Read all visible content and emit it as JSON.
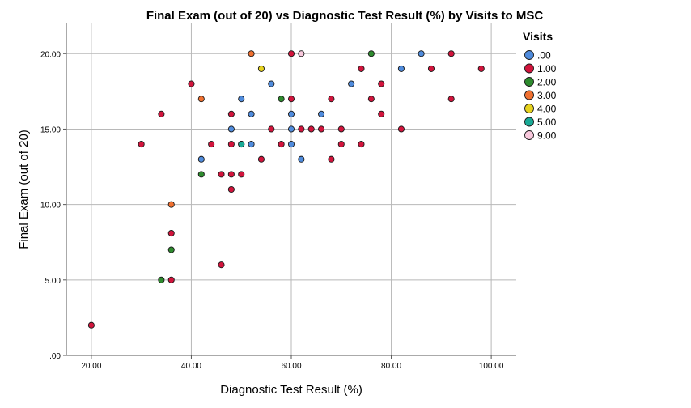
{
  "chart_data": {
    "type": "scatter",
    "title": "Final Exam (out of 20) vs Diagnostic Test Result (%) by Visits to MSC",
    "xlabel": "Diagnostic Test Result (%)",
    "ylabel": "Final Exam (out of 20)",
    "xlim": [
      15,
      105
    ],
    "ylim": [
      0,
      22
    ],
    "xticks": [
      20,
      40,
      60,
      80,
      100
    ],
    "xtick_labels": [
      "20.00",
      "40.00",
      "60.00",
      "80.00",
      "100.00"
    ],
    "yticks": [
      0,
      5,
      10,
      15,
      20
    ],
    "ytick_labels": [
      ".00",
      "5.00",
      "10.00",
      "15.00",
      "20.00"
    ],
    "grid": true,
    "legend_title": "Visits",
    "legend_position": "right",
    "series": [
      {
        "name": ".00",
        "color": "#4f8bdc",
        "points": [
          [
            42,
            13
          ],
          [
            48,
            15
          ],
          [
            50,
            17
          ],
          [
            52,
            16
          ],
          [
            52,
            14
          ],
          [
            56,
            18
          ],
          [
            60,
            16
          ],
          [
            60,
            15
          ],
          [
            60,
            14
          ],
          [
            62,
            13
          ],
          [
            66,
            16
          ],
          [
            72,
            18
          ],
          [
            82,
            19
          ],
          [
            86,
            20
          ]
        ]
      },
      {
        "name": "1.00",
        "color": "#d2143c",
        "points": [
          [
            20,
            2
          ],
          [
            30,
            14
          ],
          [
            34,
            16
          ],
          [
            36,
            8.1
          ],
          [
            36,
            5
          ],
          [
            40,
            18
          ],
          [
            44,
            14
          ],
          [
            46,
            12
          ],
          [
            46,
            6
          ],
          [
            48,
            16
          ],
          [
            48,
            14
          ],
          [
            48,
            12
          ],
          [
            48,
            11
          ],
          [
            50,
            14
          ],
          [
            50,
            12
          ],
          [
            54,
            13
          ],
          [
            56,
            15
          ],
          [
            58,
            14
          ],
          [
            60,
            20
          ],
          [
            60,
            17
          ],
          [
            62,
            15
          ],
          [
            64,
            15
          ],
          [
            66,
            15
          ],
          [
            68,
            17
          ],
          [
            68,
            13
          ],
          [
            70,
            15
          ],
          [
            70,
            14
          ],
          [
            74,
            19
          ],
          [
            74,
            14
          ],
          [
            76,
            17
          ],
          [
            78,
            18
          ],
          [
            78,
            16
          ],
          [
            82,
            15
          ],
          [
            88,
            19
          ],
          [
            92,
            20
          ],
          [
            92,
            17
          ],
          [
            98,
            19
          ]
        ]
      },
      {
        "name": "2.00",
        "color": "#2e8b2e",
        "points": [
          [
            34,
            5
          ],
          [
            36,
            7
          ],
          [
            42,
            12
          ],
          [
            58,
            17
          ],
          [
            76,
            20
          ]
        ]
      },
      {
        "name": "3.00",
        "color": "#f07030",
        "points": [
          [
            36,
            10
          ],
          [
            42,
            17
          ],
          [
            52,
            20
          ]
        ]
      },
      {
        "name": "4.00",
        "color": "#e6d21e",
        "points": [
          [
            54,
            19
          ]
        ]
      },
      {
        "name": "5.00",
        "color": "#19aa96",
        "points": [
          [
            50,
            14
          ]
        ]
      },
      {
        "name": "9.00",
        "color": "#f8c8dc",
        "points": [
          [
            62,
            20
          ]
        ]
      }
    ]
  }
}
